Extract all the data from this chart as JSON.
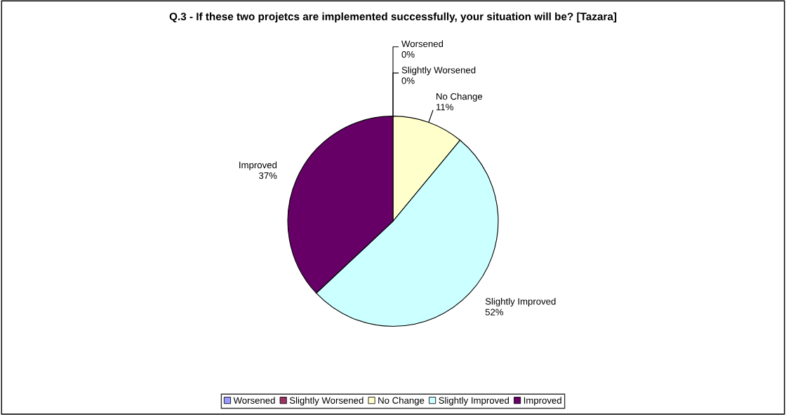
{
  "chart_data": {
    "type": "pie",
    "title": "Q.3 - If these two projetcs are implemented successfully, your situation will be? [Tazara]",
    "categories": [
      "Worsened",
      "Slightly Worsened",
      "No Change",
      "Slightly Improved",
      "Improved"
    ],
    "values": [
      0,
      0,
      11,
      52,
      37
    ],
    "value_labels": [
      "0%",
      "0%",
      "11%",
      "52%",
      "37%"
    ],
    "colors": [
      "#9999ff",
      "#993366",
      "#ffffcc",
      "#ccffff",
      "#660066"
    ],
    "legend": "bottom"
  }
}
